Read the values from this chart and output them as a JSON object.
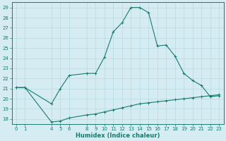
{
  "xlabel": "Humidex (Indice chaleur)",
  "ylabel": "",
  "bg_color": "#d4ecf2",
  "grid_color": "#b8d8e2",
  "line_color": "#1a7a6e",
  "spine_color": "#1a7a6e",
  "xlim": [
    -0.5,
    23.5
  ],
  "ylim": [
    17.5,
    29.5
  ],
  "xticks": [
    0,
    1,
    4,
    5,
    6,
    8,
    9,
    10,
    11,
    12,
    13,
    14,
    15,
    16,
    17,
    18,
    19,
    20,
    21,
    22,
    23
  ],
  "yticks": [
    18,
    19,
    20,
    21,
    22,
    23,
    24,
    25,
    26,
    27,
    28,
    29
  ],
  "main_x": [
    0,
    1,
    4,
    5,
    6,
    8,
    9,
    10,
    11,
    12,
    13,
    14,
    15,
    16,
    17,
    18,
    19,
    20,
    21,
    22,
    23
  ],
  "main_y": [
    21.1,
    21.1,
    19.5,
    21.0,
    22.3,
    22.5,
    22.5,
    24.1,
    26.6,
    27.5,
    29.0,
    29.0,
    28.5,
    25.2,
    25.3,
    24.2,
    22.5,
    21.8,
    21.3,
    20.2,
    20.3
  ],
  "ref_x": [
    0,
    1,
    4,
    5,
    6,
    8,
    9,
    10,
    11,
    12,
    13,
    14,
    15,
    16,
    17,
    18,
    19,
    20,
    21,
    22,
    23
  ],
  "ref_y": [
    21.1,
    21.1,
    17.7,
    17.8,
    18.1,
    18.4,
    18.5,
    18.7,
    18.9,
    19.1,
    19.3,
    19.5,
    19.6,
    19.7,
    19.8,
    19.9,
    20.0,
    20.1,
    20.2,
    20.3,
    20.4
  ],
  "tick_fontsize": 5,
  "xlabel_fontsize": 6,
  "marker_size": 3,
  "linewidth": 0.8
}
